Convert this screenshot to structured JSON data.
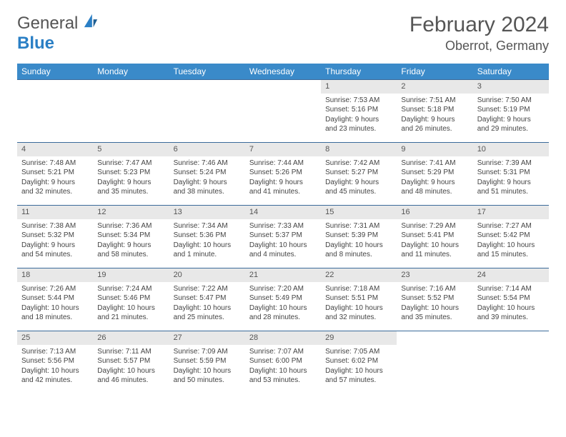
{
  "logo": {
    "general": "General",
    "blue": "Blue"
  },
  "title": "February 2024",
  "location": "Oberrot, Germany",
  "colors": {
    "header_bg": "#3a8ac9",
    "header_fg": "#ffffff",
    "border": "#3a6a9a",
    "dayband": "#e8e8e8",
    "text": "#444444",
    "logo_blue": "#2a7fc5"
  },
  "weekdays": [
    "Sunday",
    "Monday",
    "Tuesday",
    "Wednesday",
    "Thursday",
    "Friday",
    "Saturday"
  ],
  "weeks": [
    [
      {
        "empty": true
      },
      {
        "empty": true
      },
      {
        "empty": true
      },
      {
        "empty": true
      },
      {
        "day": "1",
        "sunrise": "Sunrise: 7:53 AM",
        "sunset": "Sunset: 5:16 PM",
        "daylight": "Daylight: 9 hours and 23 minutes."
      },
      {
        "day": "2",
        "sunrise": "Sunrise: 7:51 AM",
        "sunset": "Sunset: 5:18 PM",
        "daylight": "Daylight: 9 hours and 26 minutes."
      },
      {
        "day": "3",
        "sunrise": "Sunrise: 7:50 AM",
        "sunset": "Sunset: 5:19 PM",
        "daylight": "Daylight: 9 hours and 29 minutes."
      }
    ],
    [
      {
        "day": "4",
        "sunrise": "Sunrise: 7:48 AM",
        "sunset": "Sunset: 5:21 PM",
        "daylight": "Daylight: 9 hours and 32 minutes."
      },
      {
        "day": "5",
        "sunrise": "Sunrise: 7:47 AM",
        "sunset": "Sunset: 5:23 PM",
        "daylight": "Daylight: 9 hours and 35 minutes."
      },
      {
        "day": "6",
        "sunrise": "Sunrise: 7:46 AM",
        "sunset": "Sunset: 5:24 PM",
        "daylight": "Daylight: 9 hours and 38 minutes."
      },
      {
        "day": "7",
        "sunrise": "Sunrise: 7:44 AM",
        "sunset": "Sunset: 5:26 PM",
        "daylight": "Daylight: 9 hours and 41 minutes."
      },
      {
        "day": "8",
        "sunrise": "Sunrise: 7:42 AM",
        "sunset": "Sunset: 5:27 PM",
        "daylight": "Daylight: 9 hours and 45 minutes."
      },
      {
        "day": "9",
        "sunrise": "Sunrise: 7:41 AM",
        "sunset": "Sunset: 5:29 PM",
        "daylight": "Daylight: 9 hours and 48 minutes."
      },
      {
        "day": "10",
        "sunrise": "Sunrise: 7:39 AM",
        "sunset": "Sunset: 5:31 PM",
        "daylight": "Daylight: 9 hours and 51 minutes."
      }
    ],
    [
      {
        "day": "11",
        "sunrise": "Sunrise: 7:38 AM",
        "sunset": "Sunset: 5:32 PM",
        "daylight": "Daylight: 9 hours and 54 minutes."
      },
      {
        "day": "12",
        "sunrise": "Sunrise: 7:36 AM",
        "sunset": "Sunset: 5:34 PM",
        "daylight": "Daylight: 9 hours and 58 minutes."
      },
      {
        "day": "13",
        "sunrise": "Sunrise: 7:34 AM",
        "sunset": "Sunset: 5:36 PM",
        "daylight": "Daylight: 10 hours and 1 minute."
      },
      {
        "day": "14",
        "sunrise": "Sunrise: 7:33 AM",
        "sunset": "Sunset: 5:37 PM",
        "daylight": "Daylight: 10 hours and 4 minutes."
      },
      {
        "day": "15",
        "sunrise": "Sunrise: 7:31 AM",
        "sunset": "Sunset: 5:39 PM",
        "daylight": "Daylight: 10 hours and 8 minutes."
      },
      {
        "day": "16",
        "sunrise": "Sunrise: 7:29 AM",
        "sunset": "Sunset: 5:41 PM",
        "daylight": "Daylight: 10 hours and 11 minutes."
      },
      {
        "day": "17",
        "sunrise": "Sunrise: 7:27 AM",
        "sunset": "Sunset: 5:42 PM",
        "daylight": "Daylight: 10 hours and 15 minutes."
      }
    ],
    [
      {
        "day": "18",
        "sunrise": "Sunrise: 7:26 AM",
        "sunset": "Sunset: 5:44 PM",
        "daylight": "Daylight: 10 hours and 18 minutes."
      },
      {
        "day": "19",
        "sunrise": "Sunrise: 7:24 AM",
        "sunset": "Sunset: 5:46 PM",
        "daylight": "Daylight: 10 hours and 21 minutes."
      },
      {
        "day": "20",
        "sunrise": "Sunrise: 7:22 AM",
        "sunset": "Sunset: 5:47 PM",
        "daylight": "Daylight: 10 hours and 25 minutes."
      },
      {
        "day": "21",
        "sunrise": "Sunrise: 7:20 AM",
        "sunset": "Sunset: 5:49 PM",
        "daylight": "Daylight: 10 hours and 28 minutes."
      },
      {
        "day": "22",
        "sunrise": "Sunrise: 7:18 AM",
        "sunset": "Sunset: 5:51 PM",
        "daylight": "Daylight: 10 hours and 32 minutes."
      },
      {
        "day": "23",
        "sunrise": "Sunrise: 7:16 AM",
        "sunset": "Sunset: 5:52 PM",
        "daylight": "Daylight: 10 hours and 35 minutes."
      },
      {
        "day": "24",
        "sunrise": "Sunrise: 7:14 AM",
        "sunset": "Sunset: 5:54 PM",
        "daylight": "Daylight: 10 hours and 39 minutes."
      }
    ],
    [
      {
        "day": "25",
        "sunrise": "Sunrise: 7:13 AM",
        "sunset": "Sunset: 5:56 PM",
        "daylight": "Daylight: 10 hours and 42 minutes."
      },
      {
        "day": "26",
        "sunrise": "Sunrise: 7:11 AM",
        "sunset": "Sunset: 5:57 PM",
        "daylight": "Daylight: 10 hours and 46 minutes."
      },
      {
        "day": "27",
        "sunrise": "Sunrise: 7:09 AM",
        "sunset": "Sunset: 5:59 PM",
        "daylight": "Daylight: 10 hours and 50 minutes."
      },
      {
        "day": "28",
        "sunrise": "Sunrise: 7:07 AM",
        "sunset": "Sunset: 6:00 PM",
        "daylight": "Daylight: 10 hours and 53 minutes."
      },
      {
        "day": "29",
        "sunrise": "Sunrise: 7:05 AM",
        "sunset": "Sunset: 6:02 PM",
        "daylight": "Daylight: 10 hours and 57 minutes."
      },
      {
        "empty": true
      },
      {
        "empty": true
      }
    ]
  ]
}
